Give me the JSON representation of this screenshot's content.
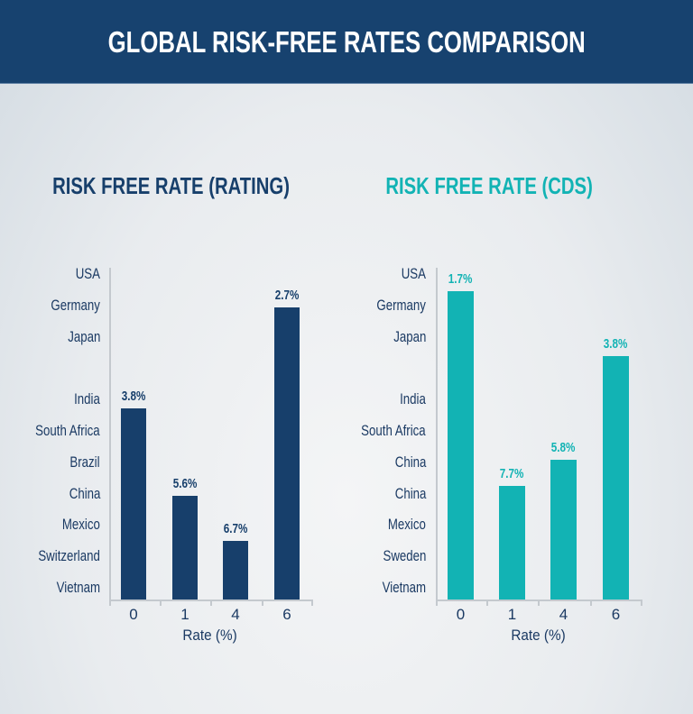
{
  "header": {
    "title": "GLOBAL RISK-FREE RATES COMPARISON"
  },
  "colors": {
    "header_bg": "#17426f",
    "navy": "#173f6b",
    "teal": "#12b3b4"
  },
  "chart_data": [
    {
      "type": "bar",
      "title": "RISK FREE RATE (RATING)",
      "color": "#173f6b",
      "categories": [
        "0",
        "1",
        "4",
        "6"
      ],
      "y_categories": [
        "USA",
        "Germany",
        "Japan",
        "",
        "India",
        "South Africa",
        "Brazil",
        "China",
        "Mexico",
        "Switzerland",
        "Vietnam"
      ],
      "value_labels": [
        "3.8%",
        "5.6%",
        "6.7%",
        "2.7%"
      ],
      "bar_levels": [
        0.59,
        0.32,
        0.18,
        0.9
      ],
      "xlabel": "Rate (%)",
      "grid": false
    },
    {
      "type": "bar",
      "title": "RISK FREE RATE (CDS)",
      "color": "#12b3b4",
      "categories": [
        "0",
        "1",
        "4",
        "6"
      ],
      "y_categories": [
        "USA",
        "Germany",
        "Japan",
        "",
        "India",
        "South Africa",
        "China",
        "China",
        "Mexico",
        "Sweden",
        "Vietnam"
      ],
      "value_labels": [
        "1.7%",
        "7.7%",
        "5.8%",
        "3.8%"
      ],
      "bar_levels": [
        0.95,
        0.35,
        0.43,
        0.75
      ],
      "xlabel": "Rate (%)",
      "grid": false
    }
  ]
}
